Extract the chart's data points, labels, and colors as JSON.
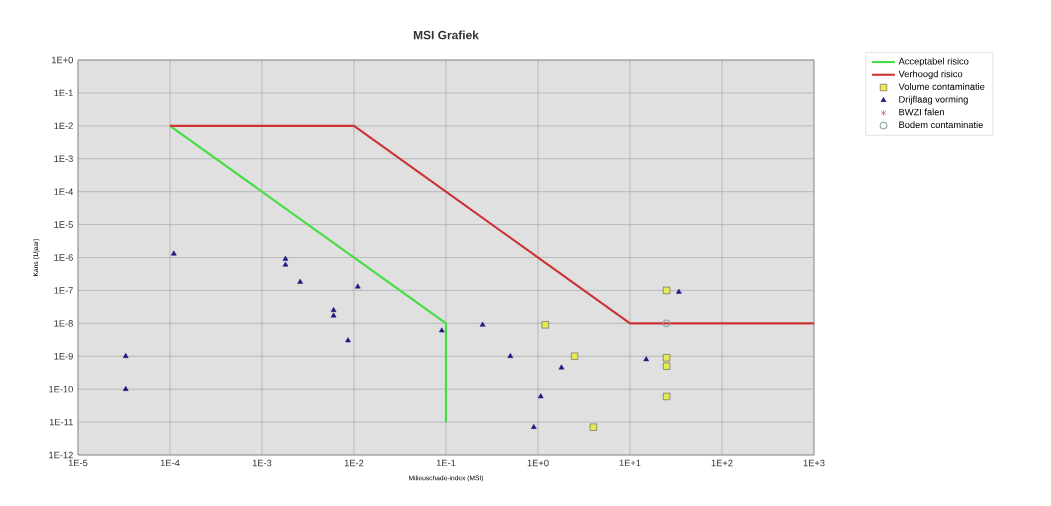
{
  "chart_data": {
    "type": "scatter",
    "title": "MSI Grafiek",
    "xlabel": "Milieuschade-index (MSI)",
    "ylabel": "Kans (1/jaar)",
    "log": "xy",
    "grid": true,
    "legend": "top right",
    "xlim": [
      1e-05,
      1000
    ],
    "ylim": [
      1e-12,
      1
    ],
    "xticks": [
      {
        "value": 1e-05,
        "label": "1E-5"
      },
      {
        "value": 0.0001,
        "label": "1E-4"
      },
      {
        "value": 0.001,
        "label": "1E-3"
      },
      {
        "value": 0.01,
        "label": "1E-2"
      },
      {
        "value": 0.1,
        "label": "1E-1"
      },
      {
        "value": 1,
        "label": "1E+0"
      },
      {
        "value": 10,
        "label": "1E+1"
      },
      {
        "value": 100,
        "label": "1E+2"
      },
      {
        "value": 1000,
        "label": "1E+3"
      }
    ],
    "yticks": [
      {
        "value": 1e-12,
        "label": "1E-12"
      },
      {
        "value": 1e-11,
        "label": "1E-11"
      },
      {
        "value": 1e-10,
        "label": "1E-10"
      },
      {
        "value": 1e-09,
        "label": "1E-9"
      },
      {
        "value": 1e-08,
        "label": "1E-8"
      },
      {
        "value": 1e-07,
        "label": "1E-7"
      },
      {
        "value": 1e-06,
        "label": "1E-6"
      },
      {
        "value": 1e-05,
        "label": "1E-5"
      },
      {
        "value": 0.0001,
        "label": "1E-4"
      },
      {
        "value": 0.001,
        "label": "1E-3"
      },
      {
        "value": 0.01,
        "label": "1E-2"
      },
      {
        "value": 0.1,
        "label": "1E-1"
      },
      {
        "value": 1,
        "label": "1E+0"
      }
    ],
    "series": [
      {
        "name": "Acceptabel risico",
        "type": "line",
        "color": "#44dd44",
        "marker": "none",
        "x": [
          0.0001,
          0.1,
          0.1
        ],
        "values": [
          0.01,
          1e-08,
          1e-11
        ]
      },
      {
        "name": "Verhoogd risico",
        "type": "line",
        "color": "#cc3333",
        "marker": "none",
        "x": [
          0.0001,
          0.01,
          10,
          1000
        ],
        "values": [
          0.01,
          0.01,
          1e-08,
          1e-08
        ]
      },
      {
        "name": "Volume contaminatie",
        "color": "#e8e850",
        "marker": "square",
        "x": [
          1.2,
          2.5,
          4,
          25,
          25,
          25,
          25
        ],
        "values": [
          9e-09,
          1e-09,
          7e-12,
          1e-07,
          9e-10,
          5e-10,
          6e-11
        ]
      },
      {
        "name": "Drijflaag vorming",
        "color": "#1a1a80",
        "marker": "triangle",
        "x": [
          3.3e-05,
          3.3e-05,
          0.00011,
          0.0018,
          0.0018,
          0.0026,
          0.006,
          0.006,
          0.0086,
          0.011,
          0.09,
          0.25,
          0.5,
          1.8,
          1.07,
          0.9,
          15,
          34
        ],
        "values": [
          1e-09,
          1e-10,
          1.3e-06,
          9e-07,
          6e-07,
          1.8e-07,
          2.5e-08,
          1.7e-08,
          3e-09,
          1.3e-07,
          6e-09,
          9e-09,
          1e-09,
          4.5e-10,
          6e-11,
          7e-12,
          8e-10,
          9e-08
        ]
      },
      {
        "name": "BWZI falen",
        "color": "#a0522d",
        "marker": "star"
      },
      {
        "name": "Bodem contaminatie",
        "color": "#80a8a8",
        "marker": "circle",
        "x": [
          25
        ],
        "values": [
          1e-08
        ]
      }
    ]
  }
}
